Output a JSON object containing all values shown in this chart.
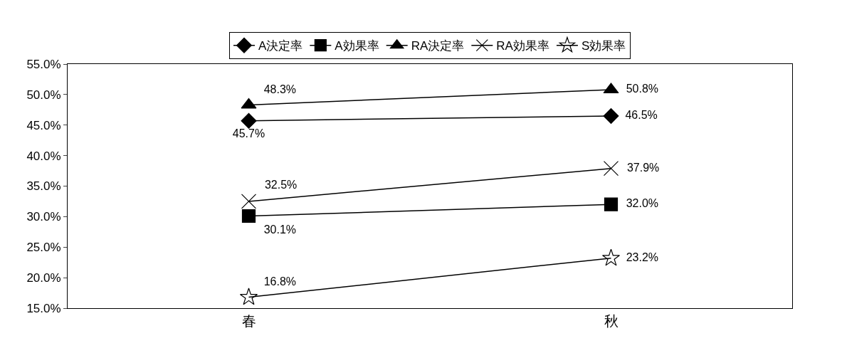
{
  "chart_data": {
    "type": "line",
    "categories": [
      "春",
      "秋"
    ],
    "series": [
      {
        "name": "A決定率",
        "color": "#000000",
        "marker": "diamond",
        "values": [
          45.7,
          46.5
        ],
        "value_labels": [
          "45.7%",
          "46.5%"
        ]
      },
      {
        "name": "A効果率",
        "color": "#000000",
        "marker": "square",
        "values": [
          30.1,
          32.0
        ],
        "value_labels": [
          "30.1%",
          "32.0%"
        ]
      },
      {
        "name": "RA決定率",
        "color": "#000000",
        "marker": "triangle",
        "values": [
          48.3,
          50.8
        ],
        "value_labels": [
          "48.3%",
          "50.8%"
        ]
      },
      {
        "name": "RA効果率",
        "color": "#000000",
        "marker": "cross",
        "values": [
          32.5,
          37.9
        ],
        "value_labels": [
          "32.5%",
          "37.9%"
        ]
      },
      {
        "name": "S効果率",
        "color": "#000000",
        "marker": "star",
        "values": [
          16.8,
          23.2
        ],
        "value_labels": [
          "16.8%",
          "23.2%"
        ]
      }
    ],
    "ylim": [
      15,
      55
    ],
    "yticks": [
      {
        "value": 15,
        "label": "15.0%"
      },
      {
        "value": 20,
        "label": "20.0%"
      },
      {
        "value": 25,
        "label": "25.0%"
      },
      {
        "value": 30,
        "label": "30.0%"
      },
      {
        "value": 35,
        "label": "35.0%"
      },
      {
        "value": 40,
        "label": "40.0%"
      },
      {
        "value": 45,
        "label": "45.0%"
      },
      {
        "value": 50,
        "label": "50.0%"
      },
      {
        "value": 55,
        "label": "55.0%"
      }
    ],
    "legend": "top",
    "line_style": "solid"
  }
}
